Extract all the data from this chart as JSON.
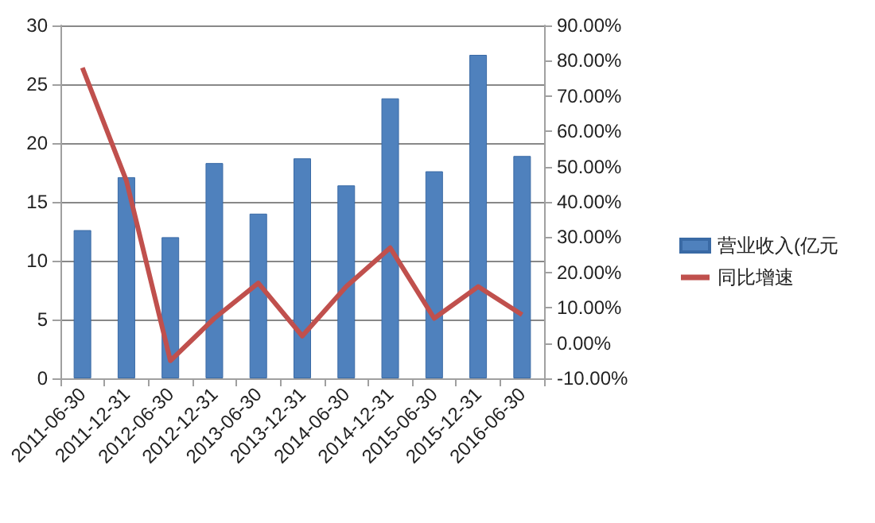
{
  "chart_data": {
    "type": "bar",
    "categories": [
      "2011-06-30",
      "2011-12-31",
      "2012-06-30",
      "2012-12-31",
      "2013-06-30",
      "2013-12-31",
      "2014-06-30",
      "2014-12-31",
      "2015-06-30",
      "2015-12-31",
      "2016-06-30"
    ],
    "series": [
      {
        "name": "营业收入(亿元",
        "color": "#4f81bd",
        "values": [
          12.6,
          17.1,
          12.0,
          18.3,
          14.0,
          18.7,
          16.4,
          23.8,
          17.6,
          27.5,
          18.9
        ]
      },
      {
        "name": "同比增速",
        "type": "line",
        "axis": "y2",
        "color": "#c0504d",
        "values": [
          78,
          46,
          -5,
          7,
          17,
          2,
          16,
          27,
          7,
          16,
          8
        ]
      }
    ],
    "ylim": [
      0,
      30
    ],
    "yticks": [
      0,
      5,
      10,
      15,
      20,
      25,
      30
    ],
    "y2lim": [
      -10,
      90
    ],
    "y2ticks": [
      {
        "value": -10,
        "label": "-10.00%"
      },
      {
        "value": 0,
        "label": "0.00%"
      },
      {
        "value": 10,
        "label": "10.00%"
      },
      {
        "value": 20,
        "label": "20.00%"
      },
      {
        "value": 30,
        "label": "30.00%"
      },
      {
        "value": 40,
        "label": "40.00%"
      },
      {
        "value": 50,
        "label": "50.00%"
      },
      {
        "value": 60,
        "label": "60.00%"
      },
      {
        "value": 70,
        "label": "70.00%"
      },
      {
        "value": 80,
        "label": "80.00%"
      },
      {
        "value": 90,
        "label": "90.00%"
      }
    ],
    "grid": "y",
    "legend": "right",
    "marker": "none",
    "line_style": "solid"
  }
}
